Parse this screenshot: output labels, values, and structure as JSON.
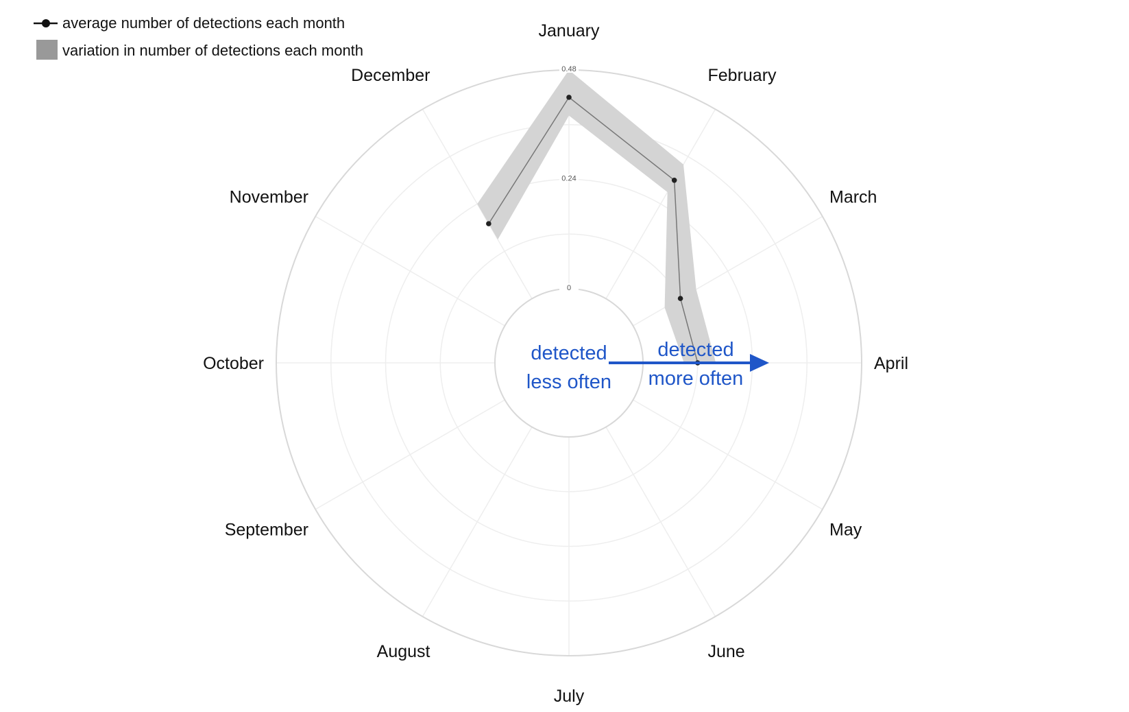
{
  "chart_data": {
    "type": "radar",
    "categories": [
      "January",
      "February",
      "March",
      "April",
      "May",
      "June",
      "July",
      "August",
      "September",
      "October",
      "November",
      "December"
    ],
    "series": [
      {
        "name": "average number of detections each month",
        "values": [
          0.42,
          0.3,
          0.12,
          0.12,
          null,
          null,
          null,
          null,
          null,
          null,
          null,
          0.19
        ]
      }
    ],
    "band": {
      "name": "variation in number of detections each month",
      "lower": [
        0.38,
        0.27,
        0.08,
        0.09,
        null,
        null,
        null,
        null,
        null,
        null,
        null,
        0.15
      ],
      "upper": [
        0.48,
        0.34,
        0.16,
        0.16,
        null,
        null,
        null,
        null,
        null,
        null,
        null,
        0.24
      ]
    },
    "radial_ticks": [
      "0",
      "0.24",
      "0.48"
    ],
    "radial_range": [
      0,
      0.48
    ],
    "legend": {
      "position": "top-left",
      "line_label": "average number of detections each month",
      "band_label": "variation in number of detections each month"
    },
    "annotations": {
      "inner_line1": "detected",
      "inner_line2": "less often",
      "outer_line1": "detected",
      "outer_line2": "more often"
    },
    "colors": {
      "series": "#777777",
      "points": "#222222",
      "band": "#d4d4d4",
      "grid": "#eeeeee",
      "outer_ring": "#d8d8d8",
      "annotation": "#1f56c8",
      "legend_band": "#999999"
    }
  }
}
